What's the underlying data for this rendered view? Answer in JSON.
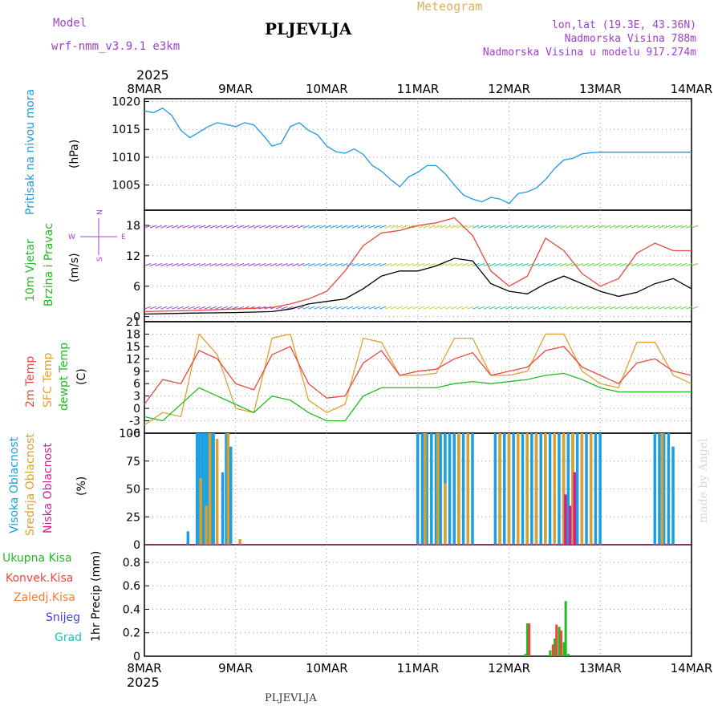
{
  "header": {
    "title": "PLJEVLJA",
    "meteogram": "Meteogram",
    "model_label": "Model",
    "model_name": "wrf-nmm_v3.9.1  e3km",
    "lonlat": "lon,lat (19.3E, 43.36N)",
    "altitude": "Nadmorska Visina 788m",
    "model_altitude": "Nadmorska Visina u modelu 917.274m",
    "footer": "PLJEVLJA",
    "credit": "made by Angel",
    "year_top": "2025",
    "year_bottom": "2025"
  },
  "colors": {
    "pressure": "#1a9be0",
    "temp2m": "#e84a3c",
    "sfc": "#e0a030",
    "dew": "#22bb22",
    "high": "#1aa0e0",
    "mid": "#d8a030",
    "low": "#d02090",
    "total": "#22bb22",
    "conv": "#e84a3c",
    "frozen": "#f08030",
    "snow": "#4040e0",
    "grad": "#20c0c0",
    "purple": "#a040d0",
    "wind": "#000000"
  },
  "time_axis": {
    "days": [
      "8MAR",
      "9MAR",
      "10MAR",
      "11MAR",
      "12MAR",
      "13MAR",
      "14MAR"
    ]
  },
  "chart_data": [
    {
      "panel": "pressure",
      "type": "line",
      "ylabel_left": "Pritisak na nivou mora",
      "ylabel_unit": "(hPa)",
      "yticks": [
        1005,
        1010,
        1015,
        1020
      ],
      "ylim": [
        1000.5,
        1020.5
      ],
      "series": [
        {
          "name": "MSLP",
          "x": [
            0,
            0.1,
            0.2,
            0.3,
            0.4,
            0.5,
            0.6,
            0.7,
            0.8,
            1.0,
            1.1,
            1.2,
            1.3,
            1.4,
            1.5,
            1.6,
            1.7,
            1.8,
            1.9,
            2.0,
            2.1,
            2.2,
            2.3,
            2.4,
            2.5,
            2.6,
            2.7,
            2.8,
            2.9,
            3.0,
            3.1,
            3.2,
            3.3,
            3.4,
            3.5,
            3.6,
            3.7,
            3.8,
            3.9,
            4.0,
            4.1,
            4.2,
            4.3,
            4.4,
            4.5,
            4.6,
            4.7,
            4.8,
            4.9,
            5.0,
            5.1,
            5.2,
            5.3,
            5.4,
            5.5,
            5.6,
            5.7,
            5.8,
            5.9,
            6.0
          ],
          "values": [
            1018.3,
            1018.0,
            1018.8,
            1017.5,
            1014.8,
            1013.5,
            1014.5,
            1015.5,
            1016.2,
            1015.5,
            1016.2,
            1015.8,
            1014.0,
            1012.0,
            1012.5,
            1015.5,
            1016.2,
            1014.8,
            1014.0,
            1012.0,
            1011.0,
            1010.7,
            1011.5,
            1010.5,
            1008.5,
            1007.5,
            1006.0,
            1004.7,
            1006.5,
            1007.3,
            1008.5,
            1008.5,
            1007.0,
            1005.0,
            1003.2,
            1002.5,
            1002.0,
            1002.8,
            1002.5,
            1001.7,
            1003.5,
            1003.8,
            1004.5,
            1006.0,
            1008.0,
            1009.5,
            1009.8,
            1010.6,
            1010.8,
            1010.9,
            1010.9,
            1010.9,
            1010.9,
            1010.9,
            1010.9,
            1010.9,
            1010.9,
            1010.9,
            1010.9,
            1010.9
          ]
        }
      ]
    },
    {
      "panel": "wind",
      "type": "line",
      "ylabel_left1": "10m Vjetar",
      "ylabel_left2": "Brzina i Pravac",
      "ylabel_unit": "(m/s)",
      "compass": [
        "N",
        "W",
        "E",
        "S"
      ],
      "yticks": [
        0,
        6,
        12,
        18
      ],
      "ylim": [
        -1,
        21
      ],
      "series": [
        {
          "name": "wind speed",
          "x": [
            0,
            0.5,
            1.0,
            1.4,
            1.6,
            1.8,
            2.0,
            2.2,
            2.4,
            2.6,
            2.8,
            3.0,
            3.2,
            3.4,
            3.6,
            3.8,
            4.0,
            4.2,
            4.4,
            4.6,
            4.8,
            5.0,
            5.2,
            5.4,
            5.6,
            5.8,
            6.0
          ],
          "values": [
            0.5,
            0.7,
            0.8,
            1.0,
            1.5,
            2.5,
            3.0,
            3.5,
            5.5,
            8.0,
            9.0,
            9.0,
            10.0,
            11.5,
            11.0,
            6.5,
            5.0,
            4.5,
            6.5,
            8.0,
            6.5,
            5.0,
            4.0,
            4.8,
            6.5,
            7.5,
            5.5
          ]
        },
        {
          "name": "gust",
          "x": [
            0,
            0.5,
            1.0,
            1.4,
            1.6,
            1.8,
            2.0,
            2.2,
            2.4,
            2.6,
            2.8,
            3.0,
            3.2,
            3.4,
            3.6,
            3.8,
            4.0,
            4.2,
            4.4,
            4.6,
            4.8,
            5.0,
            5.2,
            5.4,
            5.6,
            5.8,
            6.0
          ],
          "values": [
            1.0,
            1.2,
            1.5,
            1.8,
            2.5,
            3.5,
            5.0,
            9.0,
            14.0,
            16.5,
            17.0,
            18.0,
            18.5,
            19.5,
            16.0,
            9.0,
            6.0,
            8.0,
            15.5,
            13.0,
            8.5,
            6.0,
            7.5,
            12.5,
            14.5,
            13.0,
            13.0
          ]
        }
      ]
    },
    {
      "panel": "temperature",
      "type": "line",
      "ylabel_left1": "2m Temp",
      "ylabel_left2": "SFC Temp",
      "ylabel_left3": "dewpt Temp",
      "ylabel_unit": "(C)",
      "yticks": [
        -6,
        -3,
        0,
        3,
        6,
        9,
        12,
        15,
        18,
        21
      ],
      "ylim": [
        -6,
        21
      ],
      "series": [
        {
          "name": "2m Temp",
          "x": [
            0,
            0.2,
            0.4,
            0.6,
            0.8,
            1.0,
            1.2,
            1.4,
            1.6,
            1.8,
            2.0,
            2.2,
            2.4,
            2.6,
            2.8,
            3.0,
            3.2,
            3.4,
            3.6,
            3.8,
            4.0,
            4.2,
            4.4,
            4.6,
            4.8,
            5.0,
            5.2,
            5.4,
            5.6,
            5.8,
            6.0
          ],
          "values": [
            1,
            7,
            6,
            14,
            12,
            6,
            4.5,
            13,
            15,
            6,
            2.5,
            3,
            11,
            14,
            8,
            9,
            9.5,
            12,
            13.5,
            8,
            9,
            10,
            14,
            15,
            10,
            8,
            6,
            11,
            12,
            9,
            8
          ]
        },
        {
          "name": "SFC Temp",
          "x": [
            0,
            0.2,
            0.4,
            0.6,
            0.8,
            1.0,
            1.2,
            1.4,
            1.6,
            1.8,
            2.0,
            2.2,
            2.4,
            2.6,
            2.8,
            3.0,
            3.2,
            3.4,
            3.6,
            3.8,
            4.0,
            4.2,
            4.4,
            4.6,
            4.8,
            5.0,
            5.2,
            5.4,
            5.6,
            5.8,
            6.0
          ],
          "values": [
            -4,
            -1,
            -2,
            18,
            13,
            0,
            -1,
            17,
            18,
            2,
            -1,
            1,
            17,
            16,
            8,
            8,
            8.5,
            17,
            17,
            8,
            8,
            9,
            18,
            18,
            9,
            6,
            5,
            16,
            16,
            8,
            6
          ]
        },
        {
          "name": "dewpt Temp",
          "x": [
            0,
            0.2,
            0.4,
            0.6,
            0.8,
            1.0,
            1.2,
            1.4,
            1.6,
            1.8,
            2.0,
            2.2,
            2.4,
            2.6,
            2.8,
            3.0,
            3.2,
            3.4,
            3.6,
            3.8,
            4.0,
            4.2,
            4.4,
            4.6,
            4.8,
            5.0,
            5.2,
            5.4,
            5.6,
            5.8,
            6.0
          ],
          "values": [
            -2,
            -3,
            1,
            5,
            3,
            1,
            -1,
            3,
            2,
            -1,
            -3,
            -3,
            3,
            5,
            5,
            5,
            5,
            6,
            6.5,
            6,
            6.5,
            7,
            8,
            8.5,
            7,
            5,
            4,
            4,
            4,
            4,
            4
          ]
        }
      ]
    },
    {
      "panel": "clouds",
      "type": "bar",
      "ylabel_left1": "Visoka Oblacnost",
      "ylabel_left2": "Srednja Oblacnost",
      "ylabel_left3": "Niska Oblacnost",
      "ylabel_unit": "(%)",
      "yticks": [
        0,
        25,
        50,
        75,
        100
      ],
      "ylim": [
        0,
        100
      ],
      "series": [
        {
          "name": "Visoka Oblacnost",
          "x": [
            0.48,
            0.58,
            0.61,
            0.64,
            0.67,
            0.7,
            0.73,
            0.76,
            0.86,
            0.9,
            0.95,
            3.0,
            3.05,
            3.1,
            3.15,
            3.2,
            3.25,
            3.3,
            3.35,
            3.4,
            3.45,
            3.5,
            3.55,
            3.6,
            3.85,
            3.9,
            3.95,
            4.0,
            4.05,
            4.1,
            4.15,
            4.2,
            4.25,
            4.3,
            4.35,
            4.4,
            4.45,
            4.5,
            4.55,
            4.6,
            4.65,
            4.7,
            4.75,
            4.8,
            4.85,
            4.9,
            4.95,
            5.0,
            5.6,
            5.65,
            5.7,
            5.75,
            5.8
          ],
          "values": [
            12,
            100,
            100,
            100,
            100,
            100,
            100,
            100,
            65,
            100,
            88,
            100,
            100,
            100,
            100,
            100,
            100,
            100,
            100,
            100,
            100,
            100,
            100,
            100,
            100,
            100,
            100,
            100,
            100,
            100,
            100,
            100,
            100,
            100,
            100,
            100,
            100,
            100,
            100,
            100,
            100,
            100,
            100,
            100,
            100,
            100,
            100,
            100,
            100,
            100,
            100,
            100,
            88
          ]
        },
        {
          "name": "Srednja Oblacnost",
          "x": [
            0.62,
            0.68,
            0.72,
            0.8,
            0.92,
            1.05,
            3.08,
            3.22,
            3.3,
            3.45,
            3.55,
            3.9,
            4.0,
            4.1,
            4.2,
            4.3,
            4.4,
            4.5,
            4.6,
            4.7,
            4.8,
            4.9,
            5.68
          ],
          "values": [
            60,
            35,
            100,
            95,
            100,
            5,
            100,
            100,
            55,
            100,
            100,
            100,
            100,
            100,
            100,
            100,
            100,
            100,
            100,
            100,
            100,
            100,
            100
          ]
        },
        {
          "name": "Niska Oblacnost",
          "x": [
            4.62,
            4.67,
            4.72
          ],
          "values": [
            45,
            35,
            65
          ]
        }
      ]
    },
    {
      "panel": "precip",
      "type": "bar",
      "ylabel_unit": "1hr Precip (mm)",
      "legend": [
        "Ukupna Kisa",
        "Konvek.Kisa",
        "Zaledj.Kisa",
        "Snijeg",
        "Grad"
      ],
      "yticks": [
        0,
        0.2,
        0.4,
        0.6,
        0.8
      ],
      "ylim": [
        0,
        0.95
      ],
      "series": [
        {
          "name": "Ukupna Kisa",
          "x": [
            4.18,
            4.2,
            4.45,
            4.5,
            4.55,
            4.6,
            4.62,
            4.65
          ],
          "values": [
            0.02,
            0.28,
            0.05,
            0.15,
            0.25,
            0.12,
            0.47,
            0.02
          ]
        },
        {
          "name": "Konvek.Kisa",
          "x": [
            4.22,
            4.48,
            4.52,
            4.57
          ],
          "values": [
            0.28,
            0.1,
            0.27,
            0.22
          ]
        }
      ]
    }
  ]
}
